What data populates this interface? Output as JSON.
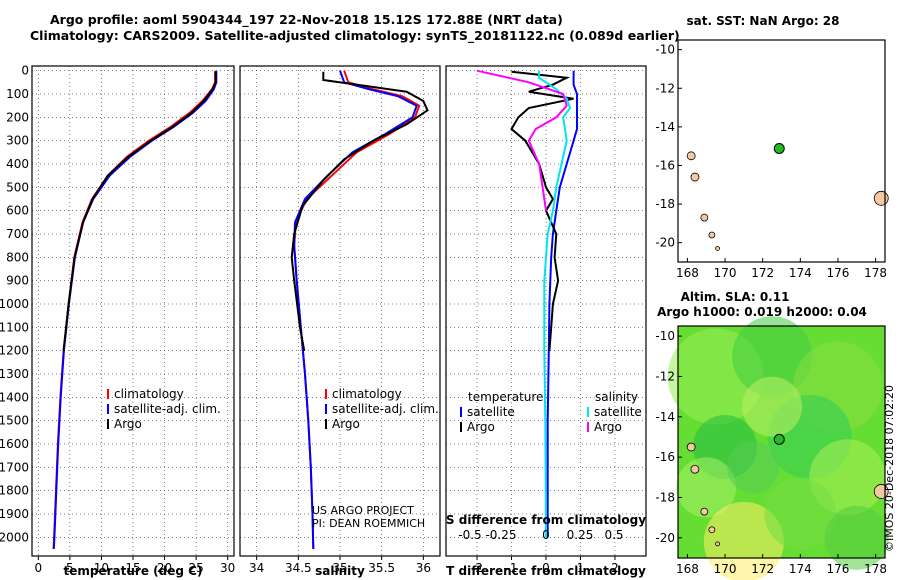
{
  "header": {
    "line1": "Argo profile: aoml 5904344_197 22-Nov-2018 15.12S 172.88E (NRT data)",
    "line2": "Climatology: CARS2009. Satellite-adjusted climatology: synTS_20181122.nc (0.089d earlier)"
  },
  "colors": {
    "climatology": "#ff0000",
    "satellite": "#0000ff",
    "argo": "#000000",
    "salinity_satellite": "#00e5ee",
    "salinity_climatology": "#ff00ff",
    "argo_marker": "#22bb22"
  },
  "chart_data": [
    {
      "type": "line",
      "panel": "temperature",
      "xlabel": "temperature (deg C)",
      "xlim": [
        -1,
        31
      ],
      "ylim": [
        2080,
        -20
      ],
      "xticks": [
        0,
        5,
        10,
        15,
        20,
        25,
        30
      ],
      "yticks": [
        0,
        100,
        200,
        300,
        400,
        500,
        600,
        700,
        800,
        900,
        1000,
        1100,
        1200,
        1300,
        1400,
        1500,
        1600,
        1700,
        1800,
        1900,
        2000
      ],
      "legend": [
        "climatology",
        "satellite-adj. clim.",
        "Argo"
      ],
      "series": [
        {
          "name": "climatology",
          "color": "#ff0000",
          "points": [
            [
              28,
              0
            ],
            [
              28,
              50
            ],
            [
              27.5,
              80
            ],
            [
              26,
              130
            ],
            [
              24,
              180
            ],
            [
              21,
              240
            ],
            [
              17.5,
              300
            ],
            [
              14,
              370
            ],
            [
              11,
              450
            ],
            [
              8.5,
              550
            ],
            [
              7,
              650
            ],
            [
              5.7,
              800
            ],
            [
              4.8,
              1000
            ],
            [
              4.0,
              1200
            ],
            [
              3.5,
              1400
            ],
            [
              3.1,
              1600
            ],
            [
              2.8,
              1800
            ],
            [
              2.5,
              2000
            ],
            [
              2.4,
              2050
            ]
          ]
        },
        {
          "name": "satellite-adj. clim.",
          "color": "#0000ff",
          "points": [
            [
              28.2,
              0
            ],
            [
              28.2,
              50
            ],
            [
              27.8,
              80
            ],
            [
              26.5,
              130
            ],
            [
              24.5,
              180
            ],
            [
              21.5,
              240
            ],
            [
              18,
              300
            ],
            [
              14.5,
              370
            ],
            [
              11.3,
              450
            ],
            [
              8.7,
              550
            ],
            [
              7.1,
              650
            ],
            [
              5.8,
              800
            ],
            [
              4.85,
              1000
            ],
            [
              4.05,
              1200
            ],
            [
              3.55,
              1400
            ],
            [
              3.15,
              1600
            ],
            [
              2.85,
              1800
            ],
            [
              2.55,
              2000
            ],
            [
              2.45,
              2050
            ]
          ]
        },
        {
          "name": "Argo",
          "color": "#000000",
          "points": [
            [
              28.1,
              5
            ],
            [
              28.1,
              50
            ],
            [
              27.6,
              80
            ],
            [
              26.2,
              130
            ],
            [
              24.3,
              180
            ],
            [
              21.3,
              240
            ],
            [
              17.8,
              300
            ],
            [
              14.2,
              370
            ],
            [
              11,
              450
            ],
            [
              8.6,
              550
            ],
            [
              7.1,
              650
            ],
            [
              5.75,
              800
            ],
            [
              4.8,
              1000
            ],
            [
              4.0,
              1200
            ]
          ]
        }
      ]
    },
    {
      "type": "line",
      "panel": "salinity",
      "xlabel": "salinity",
      "xlim": [
        33.8,
        36.2
      ],
      "ylim": [
        2080,
        -20
      ],
      "xticks": [
        34,
        34.5,
        35,
        35.5,
        36
      ],
      "legend": [
        "climatology",
        "satellite-adj. clim.",
        "Argo"
      ],
      "annotations": [
        "US ARGO PROJECT",
        "PI: DEAN ROEMMICH"
      ],
      "series": [
        {
          "name": "climatology",
          "color": "#ff0000",
          "points": [
            [
              35.05,
              0
            ],
            [
              35.1,
              50
            ],
            [
              35.4,
              80
            ],
            [
              35.75,
              110
            ],
            [
              35.95,
              150
            ],
            [
              35.9,
              200
            ],
            [
              35.6,
              270
            ],
            [
              35.2,
              350
            ],
            [
              34.9,
              450
            ],
            [
              34.6,
              550
            ],
            [
              34.47,
              650
            ],
            [
              34.45,
              750
            ],
            [
              34.48,
              900
            ],
            [
              34.53,
              1100
            ],
            [
              34.58,
              1300
            ],
            [
              34.62,
              1500
            ],
            [
              34.65,
              1700
            ],
            [
              34.67,
              1900
            ],
            [
              34.68,
              2050
            ]
          ]
        },
        {
          "name": "satellite-adj. clim.",
          "color": "#0000ff",
          "points": [
            [
              35.0,
              0
            ],
            [
              35.05,
              50
            ],
            [
              35.35,
              80
            ],
            [
              35.7,
              110
            ],
            [
              35.92,
              150
            ],
            [
              35.87,
              200
            ],
            [
              35.55,
              270
            ],
            [
              35.15,
              350
            ],
            [
              34.85,
              450
            ],
            [
              34.58,
              550
            ],
            [
              34.46,
              650
            ],
            [
              34.45,
              750
            ],
            [
              34.48,
              900
            ],
            [
              34.53,
              1100
            ],
            [
              34.58,
              1300
            ],
            [
              34.62,
              1500
            ],
            [
              34.65,
              1700
            ],
            [
              34.67,
              1900
            ],
            [
              34.68,
              2050
            ]
          ]
        },
        {
          "name": "Argo",
          "color": "#000000",
          "points": [
            [
              34.8,
              5
            ],
            [
              34.8,
              40
            ],
            [
              35.4,
              70
            ],
            [
              35.8,
              90
            ],
            [
              36.0,
              130
            ],
            [
              36.05,
              170
            ],
            [
              35.8,
              230
            ],
            [
              35.4,
              300
            ],
            [
              35.05,
              380
            ],
            [
              34.8,
              470
            ],
            [
              34.55,
              580
            ],
            [
              34.45,
              700
            ],
            [
              34.42,
              800
            ],
            [
              34.45,
              900
            ],
            [
              34.52,
              1100
            ],
            [
              34.57,
              1200
            ]
          ]
        }
      ]
    },
    {
      "type": "line",
      "panel": "difference",
      "xlabel": "T difference from climatology",
      "xlabel2": "S difference from climatology",
      "xlim": [
        -2.9,
        2.9
      ],
      "ylim": [
        2080,
        -20
      ],
      "xticks_t": [
        -2,
        -1,
        0,
        1,
        2
      ],
      "xticks_s": [
        "-0.5",
        "-0.25",
        "0",
        "0.25",
        "0.5"
      ],
      "legend": {
        "temperature": "temperature",
        "salinity": "salinity",
        "satellite": "satellite",
        "argo": "Argo"
      },
      "series": [
        {
          "name": "T satellite",
          "color": "#0000ff",
          "points": [
            [
              0.8,
              0
            ],
            [
              0.8,
              60
            ],
            [
              0.9,
              100
            ],
            [
              0.9,
              150
            ],
            [
              0.9,
              200
            ],
            [
              0.9,
              250
            ],
            [
              0.8,
              300
            ],
            [
              0.6,
              400
            ],
            [
              0.4,
              500
            ],
            [
              0.3,
              600
            ],
            [
              0.2,
              700
            ],
            [
              0.15,
              800
            ],
            [
              0.1,
              1000
            ],
            [
              0.08,
              1200
            ],
            [
              0.05,
              1500
            ],
            [
              0.05,
              2000
            ]
          ]
        },
        {
          "name": "T Argo",
          "color": "#000000",
          "points": [
            [
              -1.0,
              5
            ],
            [
              0.6,
              30
            ],
            [
              0.2,
              60
            ],
            [
              -0.5,
              90
            ],
            [
              0.8,
              120
            ],
            [
              -0.5,
              160
            ],
            [
              -0.8,
              200
            ],
            [
              -1.0,
              250
            ],
            [
              -0.6,
              300
            ],
            [
              -0.4,
              350
            ],
            [
              -0.2,
              400
            ],
            [
              -0.1,
              450
            ],
            [
              0.0,
              500
            ],
            [
              0.2,
              550
            ],
            [
              0.0,
              600
            ],
            [
              0.3,
              700
            ],
            [
              0.25,
              800
            ],
            [
              0.35,
              900
            ],
            [
              0.2,
              1000
            ],
            [
              0.15,
              1100
            ],
            [
              0.1,
              1200
            ]
          ]
        },
        {
          "name": "S satellite",
          "color": "#00e5ee",
          "points": [
            [
              -0.2,
              0
            ],
            [
              -0.2,
              30
            ],
            [
              0.3,
              80
            ],
            [
              0.6,
              120
            ],
            [
              0.7,
              160
            ],
            [
              0.5,
              200
            ],
            [
              0.6,
              300
            ],
            [
              0.45,
              400
            ],
            [
              0.3,
              500
            ],
            [
              0.2,
              600
            ],
            [
              0.05,
              700
            ],
            [
              0.0,
              800
            ],
            [
              -0.05,
              900
            ],
            [
              -0.05,
              1000
            ],
            [
              -0.05,
              1200
            ],
            [
              -0.02,
              1500
            ],
            [
              0.0,
              2000
            ]
          ]
        },
        {
          "name": "S climatology",
          "color": "#ff00ff",
          "points": [
            [
              -2.0,
              0
            ],
            [
              -0.5,
              50
            ],
            [
              0.5,
              100
            ],
            [
              0.6,
              150
            ],
            [
              0.3,
              200
            ],
            [
              -0.3,
              250
            ],
            [
              -0.5,
              300
            ],
            [
              -0.2,
              400
            ],
            [
              -0.1,
              500
            ],
            [
              0.0,
              600
            ]
          ]
        }
      ]
    },
    {
      "type": "scatter",
      "panel": "sst_map",
      "title": "sat. SST: NaN Argo: 28",
      "xlim": [
        167.5,
        178.5
      ],
      "ylim": [
        -21,
        -9.5
      ],
      "xticks": [
        168,
        170,
        172,
        174,
        176,
        178
      ],
      "yticks": [
        -10,
        -12,
        -14,
        -16,
        -18,
        -20
      ],
      "points": [
        {
          "x": 172.88,
          "y": -15.12
        }
      ]
    },
    {
      "type": "heatmap",
      "panel": "sla_map",
      "title": "Altim. SLA: 0.11",
      "subtitle": "Argo h1000: 0.019 h2000: 0.04",
      "xlim": [
        167.5,
        178.5
      ],
      "ylim": [
        -21,
        -9.5
      ],
      "xticks": [
        168,
        170,
        172,
        174,
        176,
        178
      ],
      "yticks": [
        -10,
        -12,
        -14,
        -16,
        -18,
        -20
      ],
      "points": [
        {
          "x": 172.88,
          "y": -15.12
        }
      ]
    }
  ],
  "watermark": "©IMOS 20-Dec-2018 07:02:20"
}
